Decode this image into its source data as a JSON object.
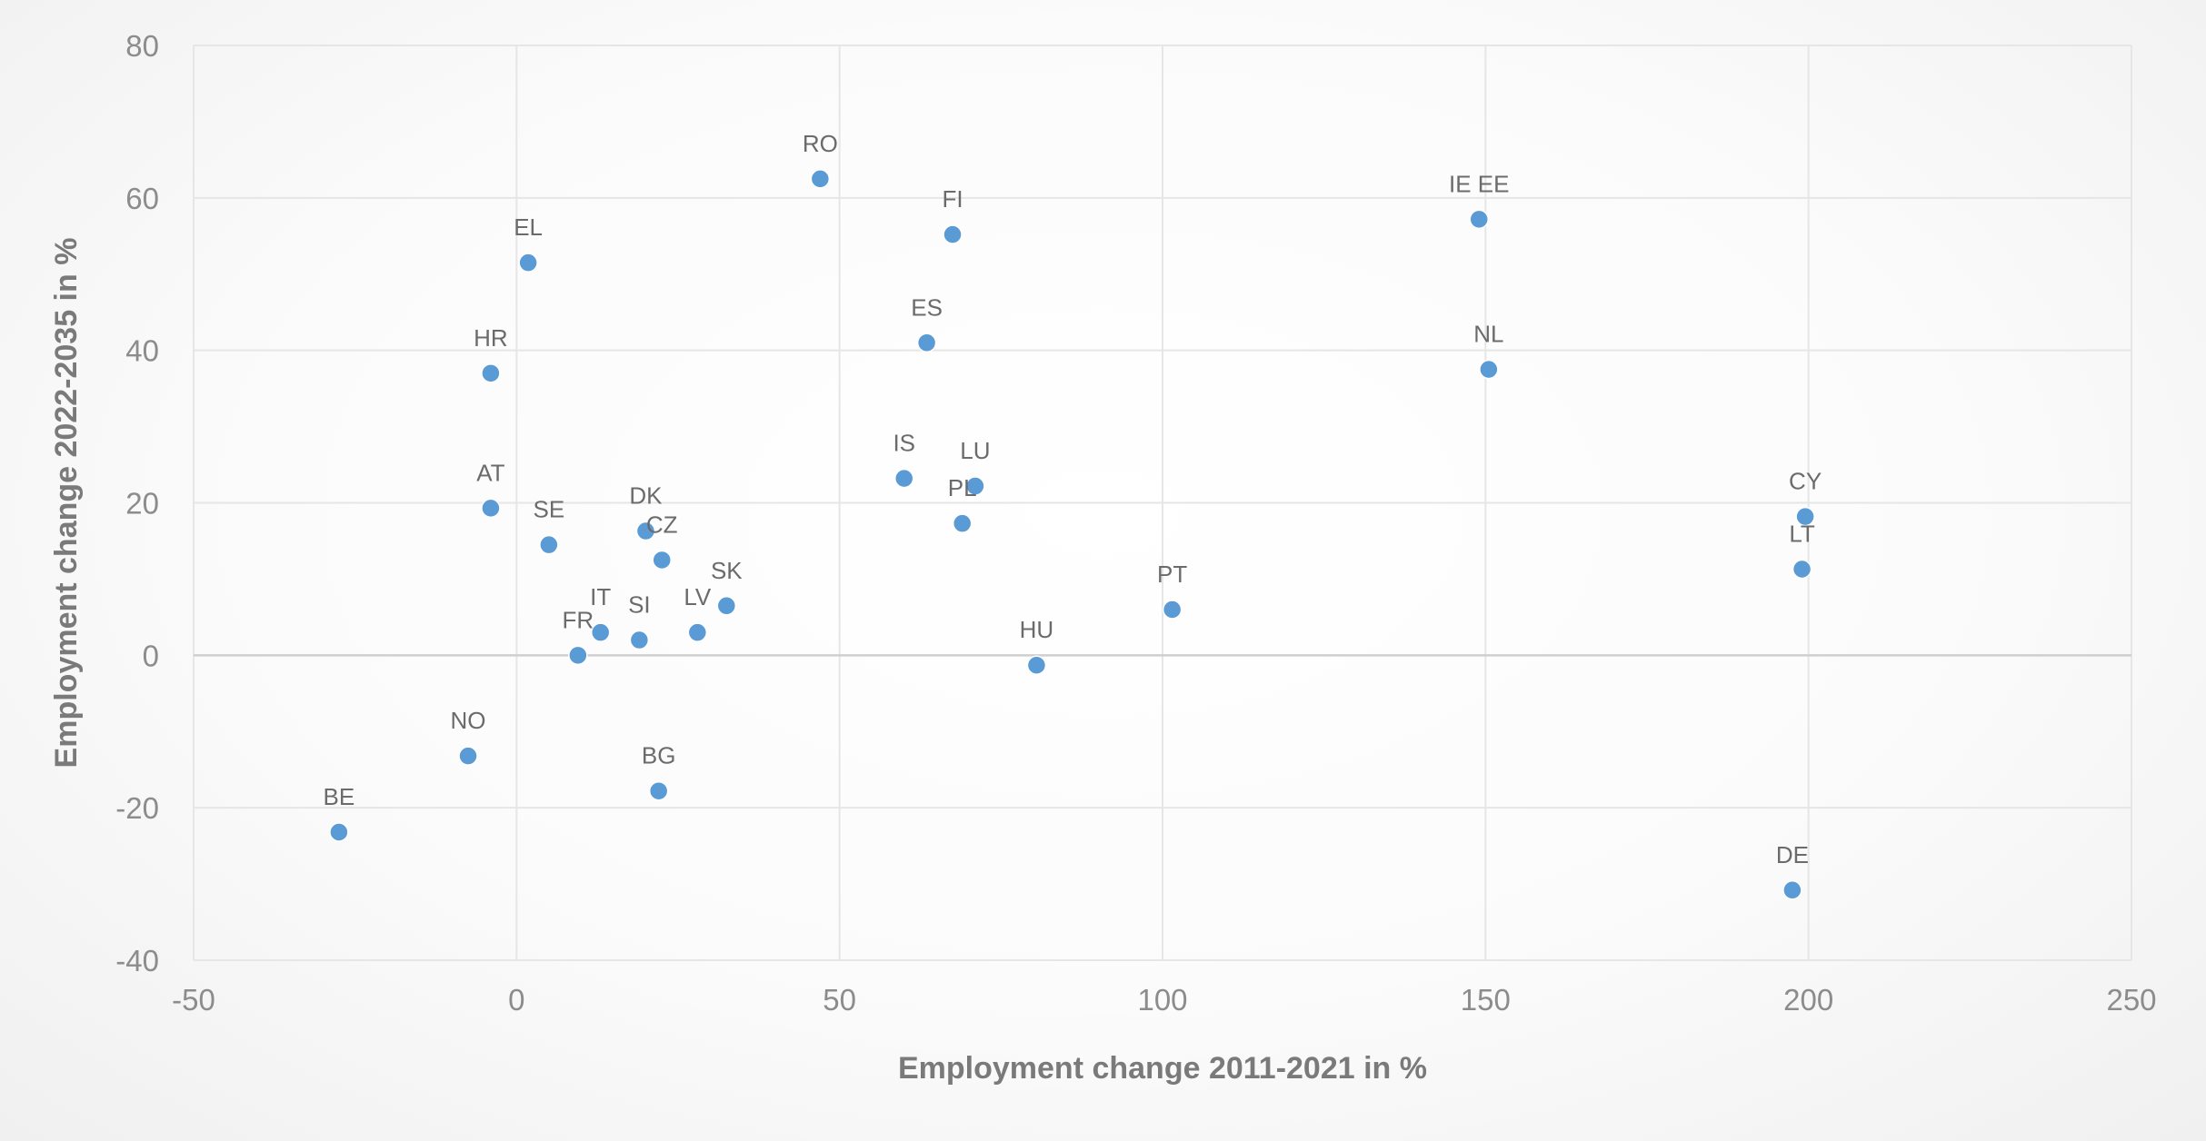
{
  "chart_data": {
    "type": "scatter",
    "xlabel": "Employment change 2011-2021 in %",
    "ylabel": "Employment change 2022-2035 in %",
    "xlim": [
      -50,
      250
    ],
    "ylim": [
      -40,
      80
    ],
    "x_ticks": [
      -50,
      0,
      50,
      100,
      150,
      200,
      250
    ],
    "y_ticks": [
      -40,
      -20,
      0,
      20,
      40,
      60,
      80
    ],
    "grid": true,
    "legend": "none",
    "marker_color": "#5b9bd5",
    "points": [
      {
        "label": "RO",
        "x": 47,
        "y": 62.5
      },
      {
        "label": "FI",
        "x": 67.5,
        "y": 55.2
      },
      {
        "label": "EL",
        "x": 1.8,
        "y": 51.5
      },
      {
        "label": "IE EE",
        "x": 149,
        "y": 57.2
      },
      {
        "label": "ES",
        "x": 63.5,
        "y": 41
      },
      {
        "label": "HR",
        "x": -4,
        "y": 37
      },
      {
        "label": "NL",
        "x": 150.5,
        "y": 37.5
      },
      {
        "label": "IS",
        "x": 60,
        "y": 23.2
      },
      {
        "label": "LU",
        "x": 71,
        "y": 22.2
      },
      {
        "label": "AT",
        "x": -4,
        "y": 19.3
      },
      {
        "label": "CY",
        "x": 199.5,
        "y": 18.2
      },
      {
        "label": "PL",
        "x": 69,
        "y": 17.3
      },
      {
        "label": "DK",
        "x": 20,
        "y": 16.3
      },
      {
        "label": "SE",
        "x": 5,
        "y": 14.5
      },
      {
        "label": "CZ",
        "x": 22.5,
        "y": 12.5
      },
      {
        "label": "LT",
        "x": 199,
        "y": 11.3
      },
      {
        "label": "SK",
        "x": 32.5,
        "y": 6.5
      },
      {
        "label": "PT",
        "x": 101.5,
        "y": 6
      },
      {
        "label": "IT",
        "x": 13,
        "y": 3
      },
      {
        "label": "LV",
        "x": 28,
        "y": 3
      },
      {
        "label": "SI",
        "x": 19,
        "y": 2
      },
      {
        "label": "FR",
        "x": 9.5,
        "y": 0
      },
      {
        "label": "HU",
        "x": 80.5,
        "y": -1.3
      },
      {
        "label": "NO",
        "x": -7.5,
        "y": -13.2
      },
      {
        "label": "BG",
        "x": 22,
        "y": -17.8
      },
      {
        "label": "BE",
        "x": -27.5,
        "y": -23.2
      },
      {
        "label": "DE",
        "x": 197.5,
        "y": -30.8
      }
    ]
  }
}
